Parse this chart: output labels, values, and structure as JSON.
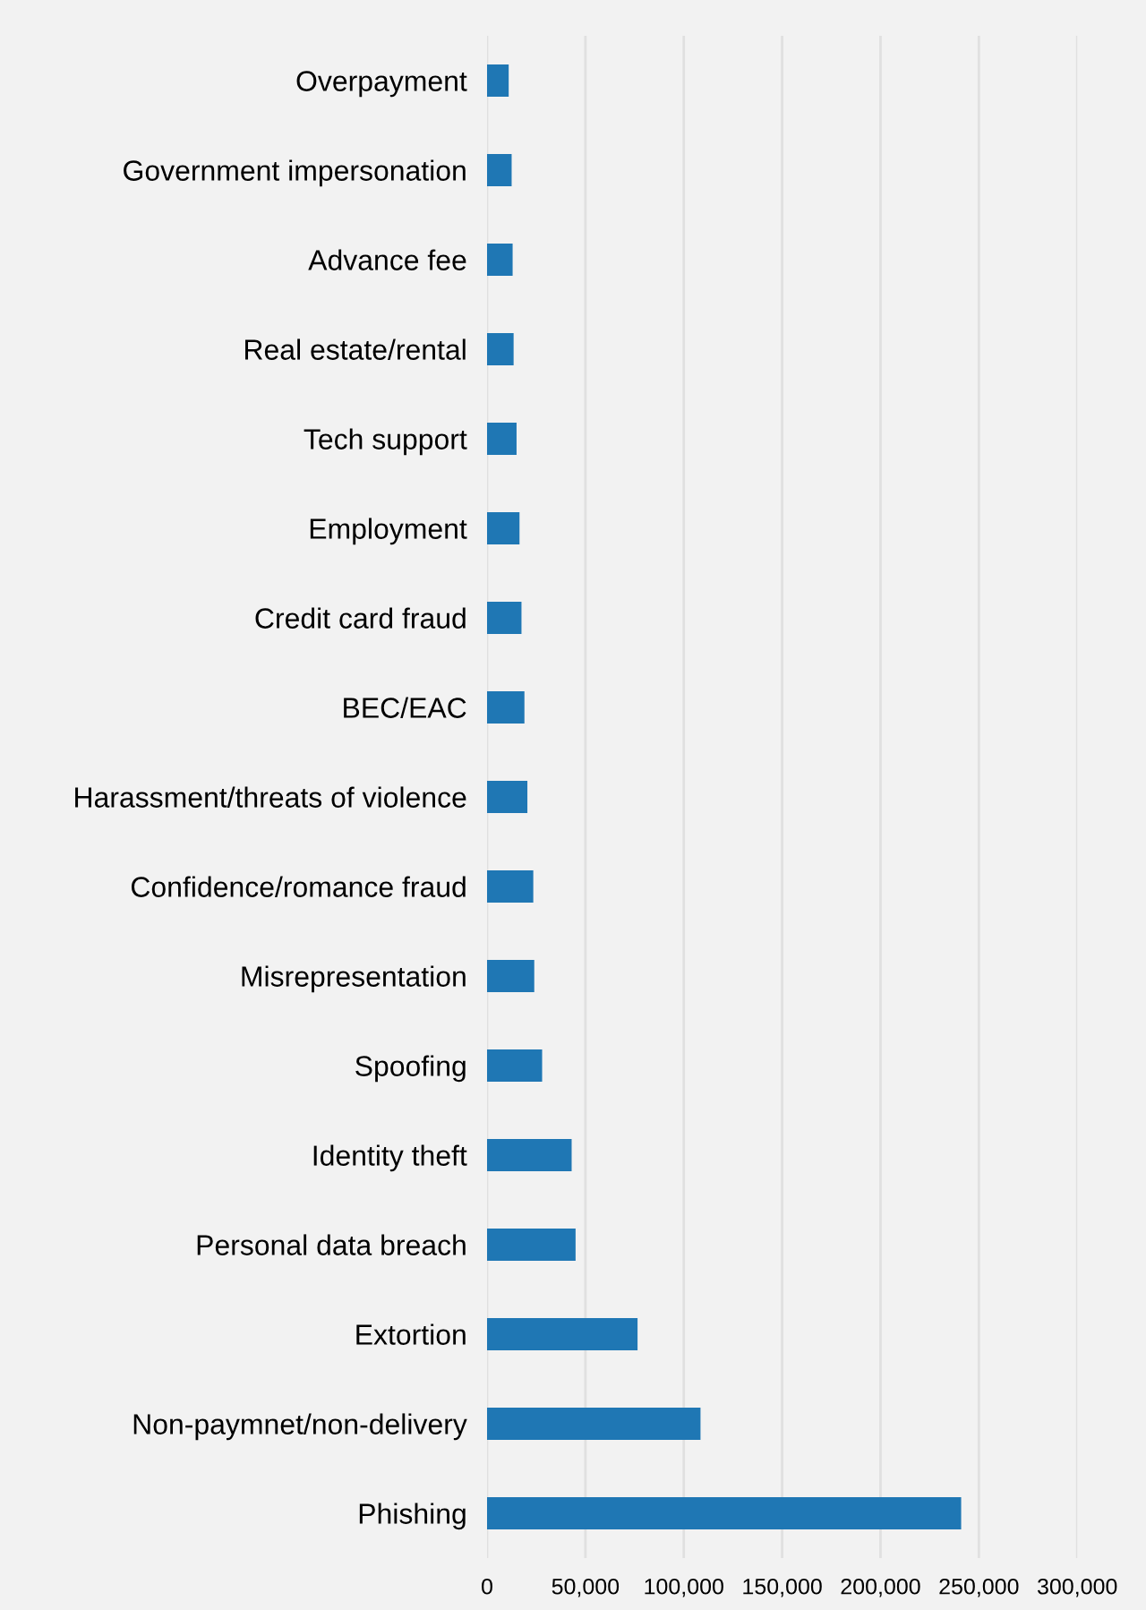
{
  "chart_data": {
    "type": "bar",
    "orientation": "horizontal",
    "categories": [
      "Overpayment",
      "Government impersonation",
      "Advance fee",
      "Real estate/rental",
      "Tech support",
      "Employment",
      "Credit card fraud",
      "BEC/EAC",
      "Harassment/threats of violence",
      "Confidence/romance fraud",
      "Misrepresentation",
      "Spoofing",
      "Identity theft",
      "Personal data breach",
      "Extortion",
      "Non-paymnet/non-delivery",
      "Phishing"
    ],
    "values": [
      11000,
      12500,
      13000,
      13500,
      15000,
      16500,
      17500,
      19000,
      20500,
      23500,
      24000,
      28000,
      43000,
      45000,
      76500,
      108500,
      241000
    ],
    "color": "#1f77b4",
    "xlim": [
      0,
      300000
    ],
    "xticks": [
      {
        "value": 0,
        "label": "0"
      },
      {
        "value": 50000,
        "label": "50,000"
      },
      {
        "value": 100000,
        "label": "100,000"
      },
      {
        "value": 150000,
        "label": "150,000"
      },
      {
        "value": 200000,
        "label": "200,000"
      },
      {
        "value": 250000,
        "label": "250,000"
      },
      {
        "value": 300000,
        "label": "300,000"
      }
    ],
    "grid": "x"
  }
}
